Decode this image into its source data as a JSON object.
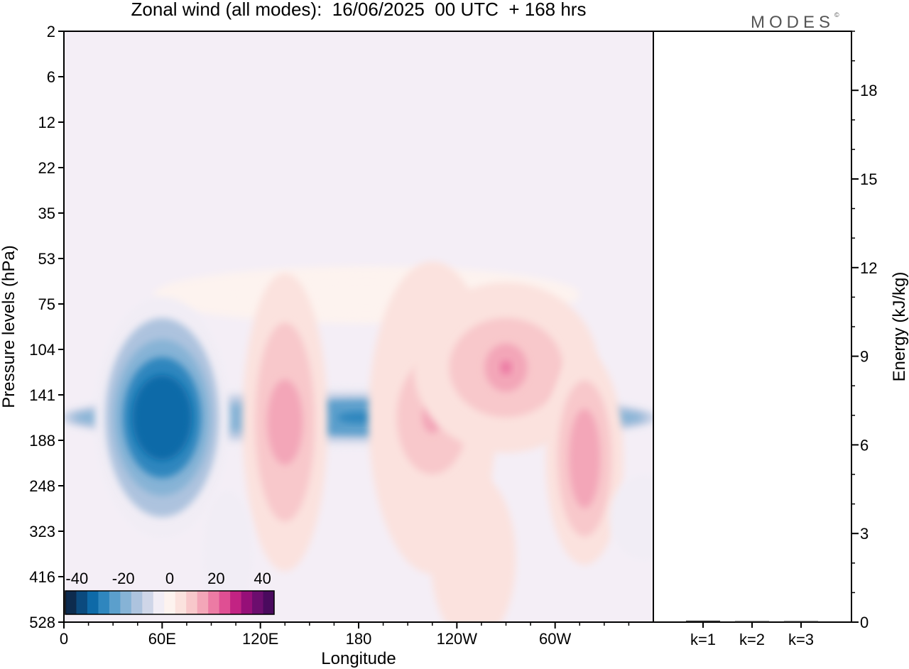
{
  "chart_data": [
    {
      "type": "heatmap",
      "title": "Zonal wind (all modes):  16/06/2025  00 UTC  + 168 hrs",
      "xlabel": "Longitude",
      "ylabel": "Pressure levels (hPa)",
      "x_ticks": [
        "0",
        "60E",
        "120E",
        "180",
        "120W",
        "60W"
      ],
      "x_tick_values": [
        0,
        60,
        120,
        180,
        240,
        300
      ],
      "xlim": [
        0,
        360
      ],
      "y_ticks": [
        "2",
        "6",
        "12",
        "22",
        "35",
        "53",
        "75",
        "104",
        "141",
        "188",
        "248",
        "323",
        "416",
        "528"
      ],
      "y_scale": "model levels (nonuniform, top to bottom)",
      "colorbar": {
        "ticks": [
          "-40",
          "-20",
          "0",
          "20",
          "40"
        ],
        "range": [
          -45,
          45
        ],
        "colors": [
          "#0d2b4e",
          "#0b4a7e",
          "#0e6aa8",
          "#2f86be",
          "#5b9fcc",
          "#86b3d6",
          "#adc3de",
          "#cfd6e8",
          "#f1edf5",
          "#fdf3ef",
          "#fbe2de",
          "#f8c8cb",
          "#f3a6b8",
          "#ec7ba4",
          "#df4f93",
          "#c22383",
          "#960f78",
          "#6c0d6e",
          "#4a0a5e"
        ]
      },
      "background_color": "#f4eef6",
      "features": [
        {
          "lon": 180,
          "level": 8.5,
          "value": -30
        },
        {
          "lon": 185,
          "level": 5.8,
          "value": 2
        },
        {
          "lon": 60,
          "level": 8.5,
          "value": -33
        },
        {
          "lon": 135,
          "level": 8.6,
          "value": 12
        },
        {
          "lon": 225,
          "level": 8.5,
          "value": 14
        },
        {
          "lon": 270,
          "level": 7.4,
          "value": 17
        },
        {
          "lon": 318,
          "level": 9.4,
          "value": 12
        },
        {
          "lon": 250,
          "level": 11.6,
          "value": 5
        },
        {
          "lon": 100,
          "level": 11.5,
          "value": -6
        },
        {
          "lon": 355,
          "level": 10.7,
          "value": -6
        }
      ]
    },
    {
      "type": "bar",
      "ylabel": "Energy (kJ/kg)",
      "ylim": [
        0,
        20
      ],
      "y_ticks": [
        "0",
        "3",
        "6",
        "9",
        "12",
        "15",
        "18"
      ],
      "y_tick_values": [
        0,
        3,
        6,
        9,
        12,
        15,
        18
      ],
      "categories": [
        "k=1",
        "k=2",
        "k=3"
      ],
      "values": [
        0.05,
        0.02,
        0.02
      ]
    }
  ],
  "branding": {
    "logo_text": "MODES",
    "logo_mark": "©"
  }
}
